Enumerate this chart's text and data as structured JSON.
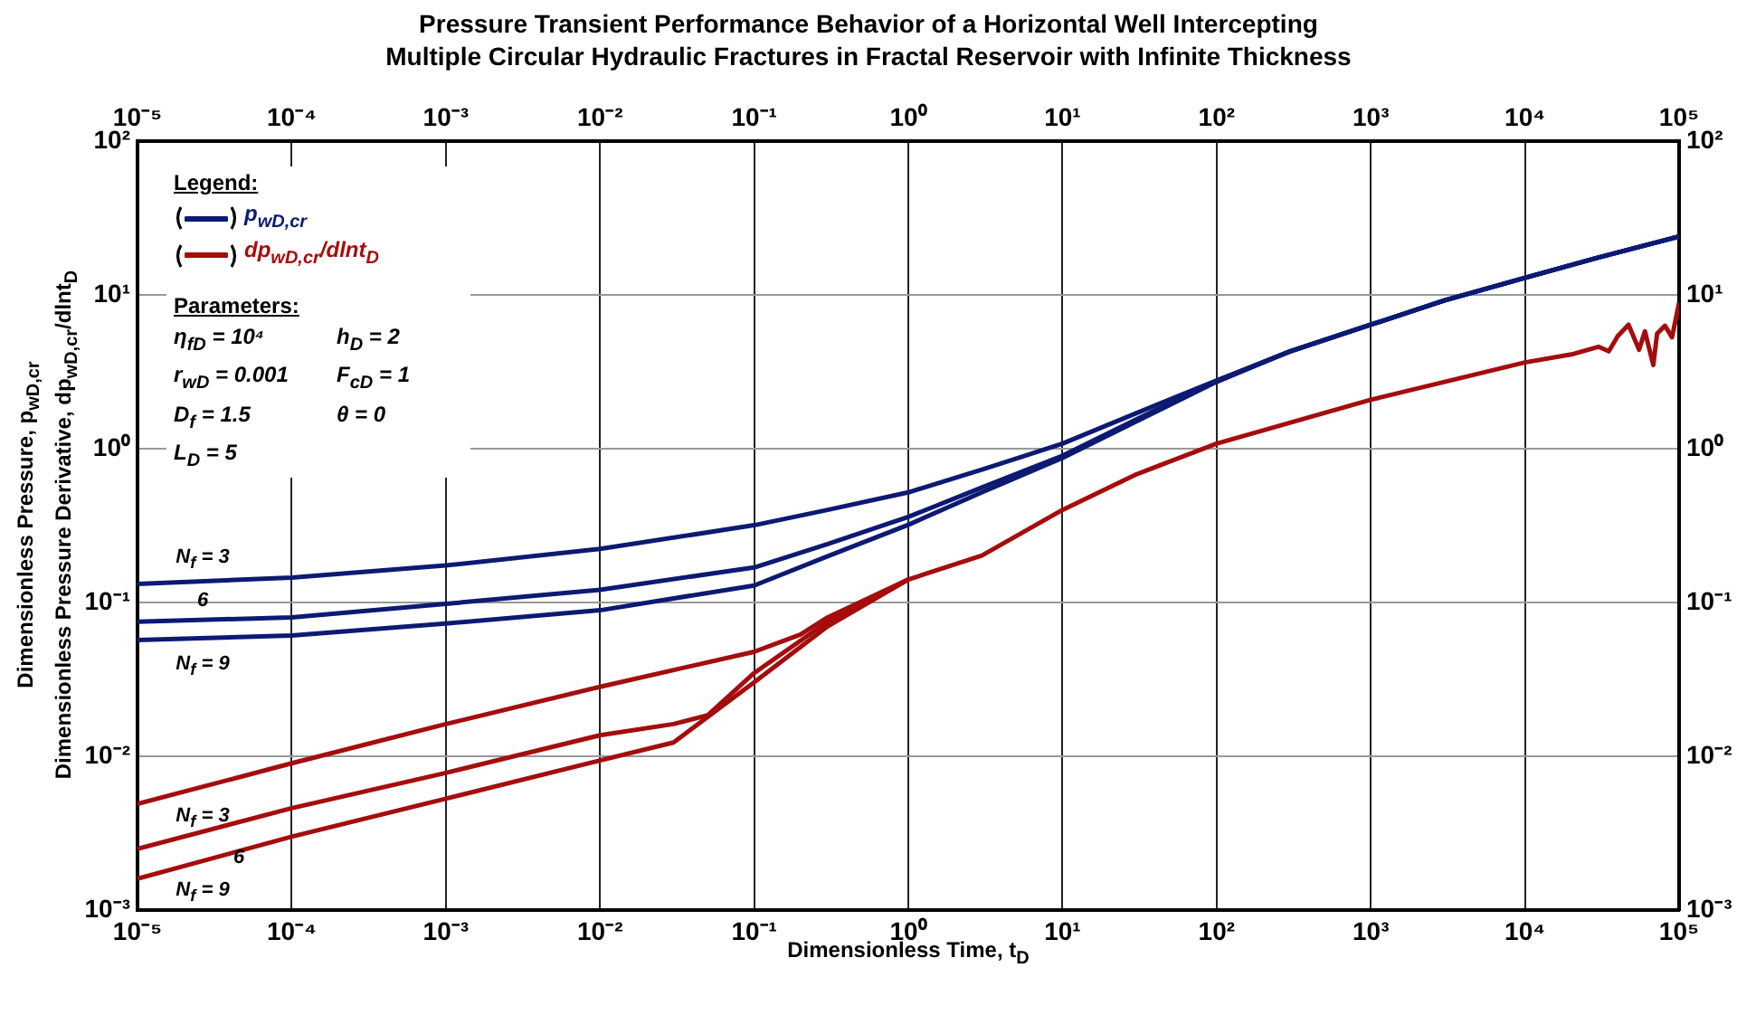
{
  "chart_data": {
    "type": "line",
    "title": "Pressure Transient Performance Behavior of a Horizontal Well Intercepting\nMultiple Circular Hydraulic Fractures in Fractal Reservoir with Infinite Thickness",
    "xlabel": "Dimensionless Time, t$_{D}$",
    "ylabel": "Dimensionless Pressure, p$_{wD,cr}$\nDimensionless Pressure Derivative, dp$_{wD,cr}$/dlnt$_{D}$",
    "legend_title": "Legend:",
    "legend": "top left",
    "log": "xy",
    "grid": true,
    "xlim": [
      1e-05,
      100000.0
    ],
    "xticks": [
      {
        "value": 1e-05,
        "label": "10⁻⁵"
      },
      {
        "value": 0.0001,
        "label": "10⁻⁴"
      },
      {
        "value": 0.001,
        "label": "10⁻³"
      },
      {
        "value": 0.01,
        "label": "10⁻²"
      },
      {
        "value": 0.1,
        "label": "10⁻¹"
      },
      {
        "value": 1,
        "label": "10⁰"
      },
      {
        "value": 10,
        "label": "10¹"
      },
      {
        "value": 100,
        "label": "10²"
      },
      {
        "value": 1000,
        "label": "10³"
      },
      {
        "value": 10000,
        "label": "10⁴"
      },
      {
        "value": 100000,
        "label": "10⁵"
      }
    ],
    "ylim": [
      0.001,
      100
    ],
    "yticks": [
      {
        "value": 0.001,
        "label": "10⁻³"
      },
      {
        "value": 0.01,
        "label": "10⁻²"
      },
      {
        "value": 0.1,
        "label": "10⁻¹"
      },
      {
        "value": 1,
        "label": "10⁰"
      },
      {
        "value": 10,
        "label": "10¹"
      },
      {
        "value": 100,
        "label": "10²"
      }
    ],
    "series": [
      {
        "name": "p$_{wD,cr}$",
        "color": "#0d1a73",
        "x": [
          1e-05,
          0.0001,
          0.001,
          0.01,
          0.1,
          0.3,
          1,
          3,
          10,
          30,
          100,
          300,
          1000,
          3000,
          10000,
          30000,
          100000
        ],
        "values": [
          0.132,
          0.145,
          0.174,
          0.223,
          0.318,
          0.4,
          0.52,
          0.73,
          1.08,
          1.7,
          2.78,
          4.3,
          6.4,
          9.2,
          12.9,
          17.5,
          24
        ]
      },
      {
        "color": "#0d1a73",
        "x": [
          1e-05,
          0.0001,
          0.001,
          0.01,
          0.1,
          0.3,
          1,
          3,
          10,
          30,
          100,
          300,
          1000,
          3000,
          10000,
          30000,
          100000
        ],
        "values": [
          0.075,
          0.08,
          0.098,
          0.121,
          0.169,
          0.24,
          0.36,
          0.56,
          0.9,
          1.55,
          2.75,
          4.3,
          6.4,
          9.2,
          12.9,
          17.5,
          24
        ]
      },
      {
        "color": "#0d1a73",
        "x": [
          1e-05,
          0.0001,
          0.001,
          0.01,
          0.1,
          0.3,
          1,
          3,
          10,
          30,
          100,
          300,
          1000,
          3000,
          10000,
          30000,
          100000
        ],
        "values": [
          0.057,
          0.061,
          0.073,
          0.089,
          0.129,
          0.2,
          0.32,
          0.52,
          0.87,
          1.5,
          2.72,
          4.3,
          6.4,
          9.2,
          12.9,
          17.5,
          24
        ]
      },
      {
        "name": "dp$_{wD,cr}$/dlnt$_{D}$",
        "color": "#a50d0d",
        "x": [
          1e-05,
          0.0001,
          0.001,
          0.01,
          0.1,
          0.2,
          0.3,
          1,
          3,
          10,
          30,
          100,
          1000,
          10000,
          20000,
          30000,
          35000,
          40000,
          47000,
          55000,
          60000,
          68000,
          72000,
          81000,
          90000,
          100000
        ],
        "values": [
          0.0049,
          0.009,
          0.0162,
          0.0283,
          0.0478,
          0.062,
          0.08,
          0.141,
          0.202,
          0.4,
          0.68,
          1.08,
          2.08,
          3.64,
          4.1,
          4.6,
          4.3,
          5.4,
          6.4,
          4.4,
          5.8,
          3.5,
          5.6,
          6.3,
          5.3,
          8.9
        ]
      },
      {
        "color": "#a50d0d",
        "x": [
          1e-05,
          0.0001,
          0.001,
          0.01,
          0.03,
          0.05,
          0.1,
          0.3,
          1
        ],
        "values": [
          0.0025,
          0.0046,
          0.0078,
          0.0137,
          0.0162,
          0.0185,
          0.0348,
          0.075,
          0.141
        ]
      },
      {
        "color": "#a50d0d",
        "x": [
          1e-05,
          0.0001,
          0.001,
          0.01,
          0.03,
          0.1,
          0.3,
          1
        ],
        "values": [
          0.0016,
          0.003,
          0.0053,
          0.0094,
          0.0123,
          0.0303,
          0.07,
          0.141
        ]
      }
    ],
    "annotations": [
      "Parameters:",
      "η$_{fD}$ = 10⁴",
      "h$_{D}$ = 2",
      "r$_{wD}$ = 0.001",
      "F$_{cD}$ = 1",
      "D$_{f}$ = 1.5",
      "θ = 0",
      "L$_{D}$ = 5",
      "N$_{f}$ = 3",
      "6",
      "N$_{f}$ = 9",
      "N$_{f}$ = 3",
      "6",
      "N$_{f}$ = 9"
    ]
  }
}
